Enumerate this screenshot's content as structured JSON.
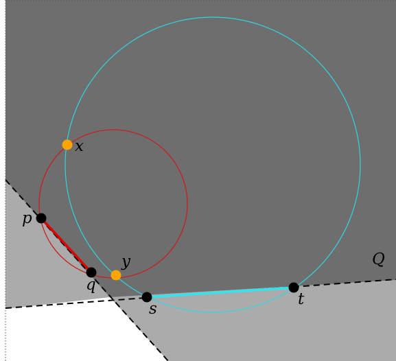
{
  "region_label": "Q",
  "points": {
    "p": {
      "label": "p"
    },
    "q": {
      "label": "q"
    },
    "s": {
      "label": "s"
    },
    "t": {
      "label": "t"
    },
    "x": {
      "label": "x"
    },
    "y": {
      "label": "y"
    }
  },
  "colors": {
    "dark_region": "#6e6e6e",
    "light_region": "#ababab",
    "background": "#ffffff",
    "red": "#dd0000",
    "cyan": "#2fe6f0",
    "orange": "#ffa500",
    "black": "#000000"
  }
}
